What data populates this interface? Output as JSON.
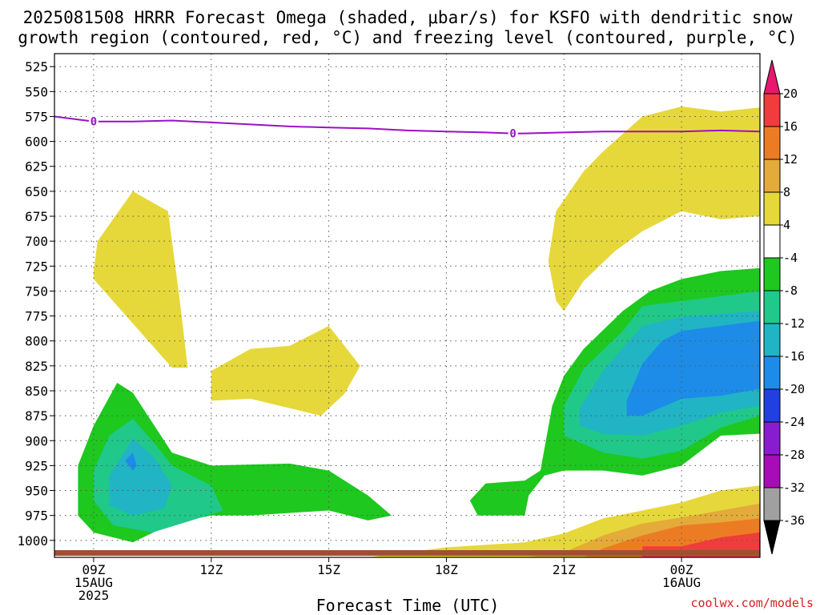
{
  "chart_data": {
    "type": "contour",
    "title": "2025081508 HRRR Forecast Omega (shaded, μbar/s) for KSFO with dendritic snow",
    "title_line2": "growth region (contoured, red, °C) and freezing level (contoured, purple, °C)",
    "xlabel": "Forecast Time (UTC)",
    "ylabel": "",
    "credit": "coolwx.com/models",
    "x_ticks": [
      {
        "hour": 9,
        "label": "09Z",
        "sub": "15AUG",
        "sub2": "2025"
      },
      {
        "hour": 12,
        "label": "12Z"
      },
      {
        "hour": 15,
        "label": "15Z"
      },
      {
        "hour": 18,
        "label": "18Z"
      },
      {
        "hour": 21,
        "label": "21Z"
      },
      {
        "hour": 24,
        "label": "00Z",
        "sub": "16AUG"
      }
    ],
    "x_range_hours": [
      8,
      26
    ],
    "y_ticks": [
      "525",
      "550",
      "575",
      "600",
      "625",
      "650",
      "675",
      "700",
      "725",
      "750",
      "775",
      "800",
      "825",
      "850",
      "875",
      "900",
      "925",
      "950",
      "975",
      "1000"
    ],
    "y_range_hpa": [
      512,
      1017
    ],
    "colorbar": {
      "labels": [
        "20",
        "16",
        "12",
        "8",
        "4",
        "-4",
        "-8",
        "-12",
        "-16",
        "-20",
        "-24",
        "-28",
        "-32",
        "-36"
      ],
      "colors": [
        "#e8186e",
        "#f03c3c",
        "#ec7c24",
        "#e4aa3a",
        "#e6d83a",
        "#ffffff",
        "#1ec81e",
        "#20c88a",
        "#20b4c4",
        "#1c8ce8",
        "#2040e0",
        "#8a1cd0",
        "#a80cb8",
        "#a0a0a0",
        "#000000"
      ]
    },
    "series": [
      {
        "name": "freezing level",
        "value_label": "0",
        "color": "#9a10c8",
        "x": [
          8.0,
          9.0,
          10.0,
          11.0,
          12.0,
          13.0,
          14.0,
          15.0,
          16.0,
          17.0,
          18.0,
          19.0,
          19.7,
          20.0,
          21.0,
          22.0,
          23.0,
          24.0,
          25.0,
          26.0
        ],
        "y": [
          575,
          580,
          580,
          579,
          581,
          583,
          585,
          586,
          587,
          589,
          590,
          591,
          592,
          592,
          591,
          590,
          590,
          590,
          589,
          590
        ]
      }
    ],
    "regions": [
      {
        "level": "4 to 8",
        "color": "#e6d83a",
        "points": [
          [
            9.0,
            730
          ],
          [
            9.1,
            700
          ],
          [
            10.0,
            650
          ],
          [
            10.9,
            670
          ],
          [
            11.2,
            760
          ],
          [
            11.4,
            827
          ],
          [
            11.0,
            827
          ],
          [
            9.0,
            738
          ]
        ]
      },
      {
        "level": "4 to 8",
        "color": "#e6d83a",
        "points": [
          [
            12.0,
            830
          ],
          [
            13.0,
            808
          ],
          [
            14.0,
            805
          ],
          [
            15.0,
            785
          ],
          [
            15.8,
            825
          ],
          [
            15.4,
            853
          ],
          [
            14.8,
            875
          ],
          [
            13.0,
            858
          ],
          [
            12.0,
            860
          ]
        ]
      },
      {
        "level": "4 to 8",
        "color": "#e6d83a",
        "points": [
          [
            20.6,
            720
          ],
          [
            20.8,
            670
          ],
          [
            21.5,
            630
          ],
          [
            22.0,
            610
          ],
          [
            23.0,
            575
          ],
          [
            24.0,
            565
          ],
          [
            25.0,
            570
          ],
          [
            26.0,
            566
          ],
          [
            26.0,
            675
          ],
          [
            25.0,
            678
          ],
          [
            24.0,
            670
          ],
          [
            23.0,
            690
          ],
          [
            22.3,
            710
          ],
          [
            21.5,
            740
          ],
          [
            21.0,
            770
          ],
          [
            20.8,
            760
          ]
        ]
      },
      {
        "level": "-8 to -4",
        "color": "#1ec81e",
        "points": [
          [
            8.6,
            925
          ],
          [
            9.0,
            885
          ],
          [
            9.6,
            842
          ],
          [
            10.0,
            852
          ],
          [
            11.0,
            912
          ],
          [
            12.0,
            925
          ],
          [
            14.0,
            923
          ],
          [
            15.0,
            930
          ],
          [
            16.0,
            955
          ],
          [
            16.6,
            975
          ],
          [
            16.0,
            980
          ],
          [
            15.0,
            970
          ],
          [
            13.0,
            975
          ],
          [
            12.0,
            975
          ],
          [
            11.0,
            983
          ],
          [
            10.0,
            1002
          ],
          [
            9.0,
            992
          ],
          [
            8.6,
            975
          ]
        ]
      },
      {
        "level": "-12 to -8",
        "color": "#20c88a",
        "points": [
          [
            9.0,
            930
          ],
          [
            9.4,
            895
          ],
          [
            10.0,
            878
          ],
          [
            10.6,
            905
          ],
          [
            11.0,
            925
          ],
          [
            12.0,
            945
          ],
          [
            12.3,
            970
          ],
          [
            11.5,
            980
          ],
          [
            10.5,
            992
          ],
          [
            9.5,
            985
          ],
          [
            9.0,
            960
          ]
        ]
      },
      {
        "level": "-16 to -12",
        "color": "#20b4c4",
        "points": [
          [
            9.4,
            935
          ],
          [
            10.0,
            898
          ],
          [
            10.5,
            915
          ],
          [
            11.0,
            945
          ],
          [
            10.8,
            968
          ],
          [
            10.0,
            975
          ],
          [
            9.4,
            965
          ]
        ]
      },
      {
        "level": "-20 to -16",
        "color": "#1c8ce8",
        "points": [
          [
            9.8,
            920
          ],
          [
            10.0,
            912
          ],
          [
            10.1,
            925
          ],
          [
            10.0,
            930
          ]
        ]
      },
      {
        "level": "-8 to -4",
        "color": "#1ec81e",
        "points": [
          [
            20.1,
            955
          ],
          [
            20.0,
            975
          ],
          [
            18.8,
            975
          ],
          [
            18.6,
            960
          ],
          [
            19.0,
            943
          ],
          [
            20.0,
            940
          ],
          [
            20.4,
            930
          ],
          [
            20.7,
            865
          ],
          [
            21.0,
            835
          ],
          [
            21.5,
            808
          ],
          [
            22.5,
            770
          ],
          [
            23.2,
            750
          ],
          [
            24.0,
            738
          ],
          [
            25.0,
            730
          ],
          [
            26.0,
            727
          ],
          [
            26.0,
            893
          ],
          [
            25.0,
            895
          ],
          [
            24.0,
            925
          ],
          [
            23.0,
            935
          ],
          [
            22.0,
            930
          ],
          [
            21.0,
            930
          ],
          [
            20.5,
            935
          ]
        ]
      },
      {
        "level": "-12 to -8",
        "color": "#20c88a",
        "points": [
          [
            21.0,
            865
          ],
          [
            21.5,
            828
          ],
          [
            22.5,
            790
          ],
          [
            23.0,
            765
          ],
          [
            24.0,
            760
          ],
          [
            25.0,
            755
          ],
          [
            26.0,
            750
          ],
          [
            26.0,
            875
          ],
          [
            25.0,
            887
          ],
          [
            24.0,
            910
          ],
          [
            23.0,
            918
          ],
          [
            22.0,
            912
          ],
          [
            21.0,
            895
          ]
        ]
      },
      {
        "level": "-16 to -12",
        "color": "#20b4c4",
        "points": [
          [
            21.4,
            868
          ],
          [
            22.0,
            830
          ],
          [
            23.0,
            785
          ],
          [
            24.0,
            776
          ],
          [
            25.0,
            773
          ],
          [
            26.0,
            770
          ],
          [
            26.0,
            865
          ],
          [
            25.0,
            872
          ],
          [
            24.0,
            885
          ],
          [
            23.0,
            895
          ],
          [
            22.0,
            893
          ],
          [
            21.4,
            885
          ]
        ]
      },
      {
        "level": "-20 to -16",
        "color": "#1c8ce8",
        "points": [
          [
            22.6,
            860
          ],
          [
            23.0,
            823
          ],
          [
            23.5,
            800
          ],
          [
            24.0,
            790
          ],
          [
            25.0,
            785
          ],
          [
            26.0,
            780
          ],
          [
            26.0,
            848
          ],
          [
            25.0,
            855
          ],
          [
            24.0,
            858
          ],
          [
            23.0,
            875
          ],
          [
            22.6,
            875
          ]
        ]
      },
      {
        "level": "4 to 8",
        "color": "#e6d83a",
        "points": [
          [
            16.0,
            1017
          ],
          [
            18.0,
            1007
          ],
          [
            20.0,
            1002
          ],
          [
            21.0,
            993
          ],
          [
            22.0,
            978
          ],
          [
            23.0,
            970
          ],
          [
            24.0,
            962
          ],
          [
            25.0,
            950
          ],
          [
            26.0,
            945
          ],
          [
            26.0,
            1017
          ]
        ]
      },
      {
        "level": "8 to 12",
        "color": "#e4aa3a",
        "points": [
          [
            20.0,
            1017
          ],
          [
            21.0,
            1012
          ],
          [
            22.0,
            995
          ],
          [
            23.0,
            983
          ],
          [
            24.0,
            977
          ],
          [
            25.0,
            970
          ],
          [
            26.0,
            963
          ],
          [
            26.0,
            1017
          ]
        ]
      },
      {
        "level": "12 to 16",
        "color": "#ec7c24",
        "points": [
          [
            21.5,
            1017
          ],
          [
            22.0,
            1008
          ],
          [
            23.0,
            995
          ],
          [
            24.0,
            985
          ],
          [
            25.0,
            982
          ],
          [
            26.0,
            978
          ],
          [
            26.0,
            1017
          ]
        ]
      },
      {
        "level": "16 to 20",
        "color": "#f03c3c",
        "points": [
          [
            23.0,
            1017
          ],
          [
            23.0,
            1006
          ],
          [
            24.0,
            1006
          ],
          [
            25.0,
            997
          ],
          [
            26.0,
            992
          ],
          [
            26.0,
            1017
          ]
        ]
      }
    ]
  }
}
